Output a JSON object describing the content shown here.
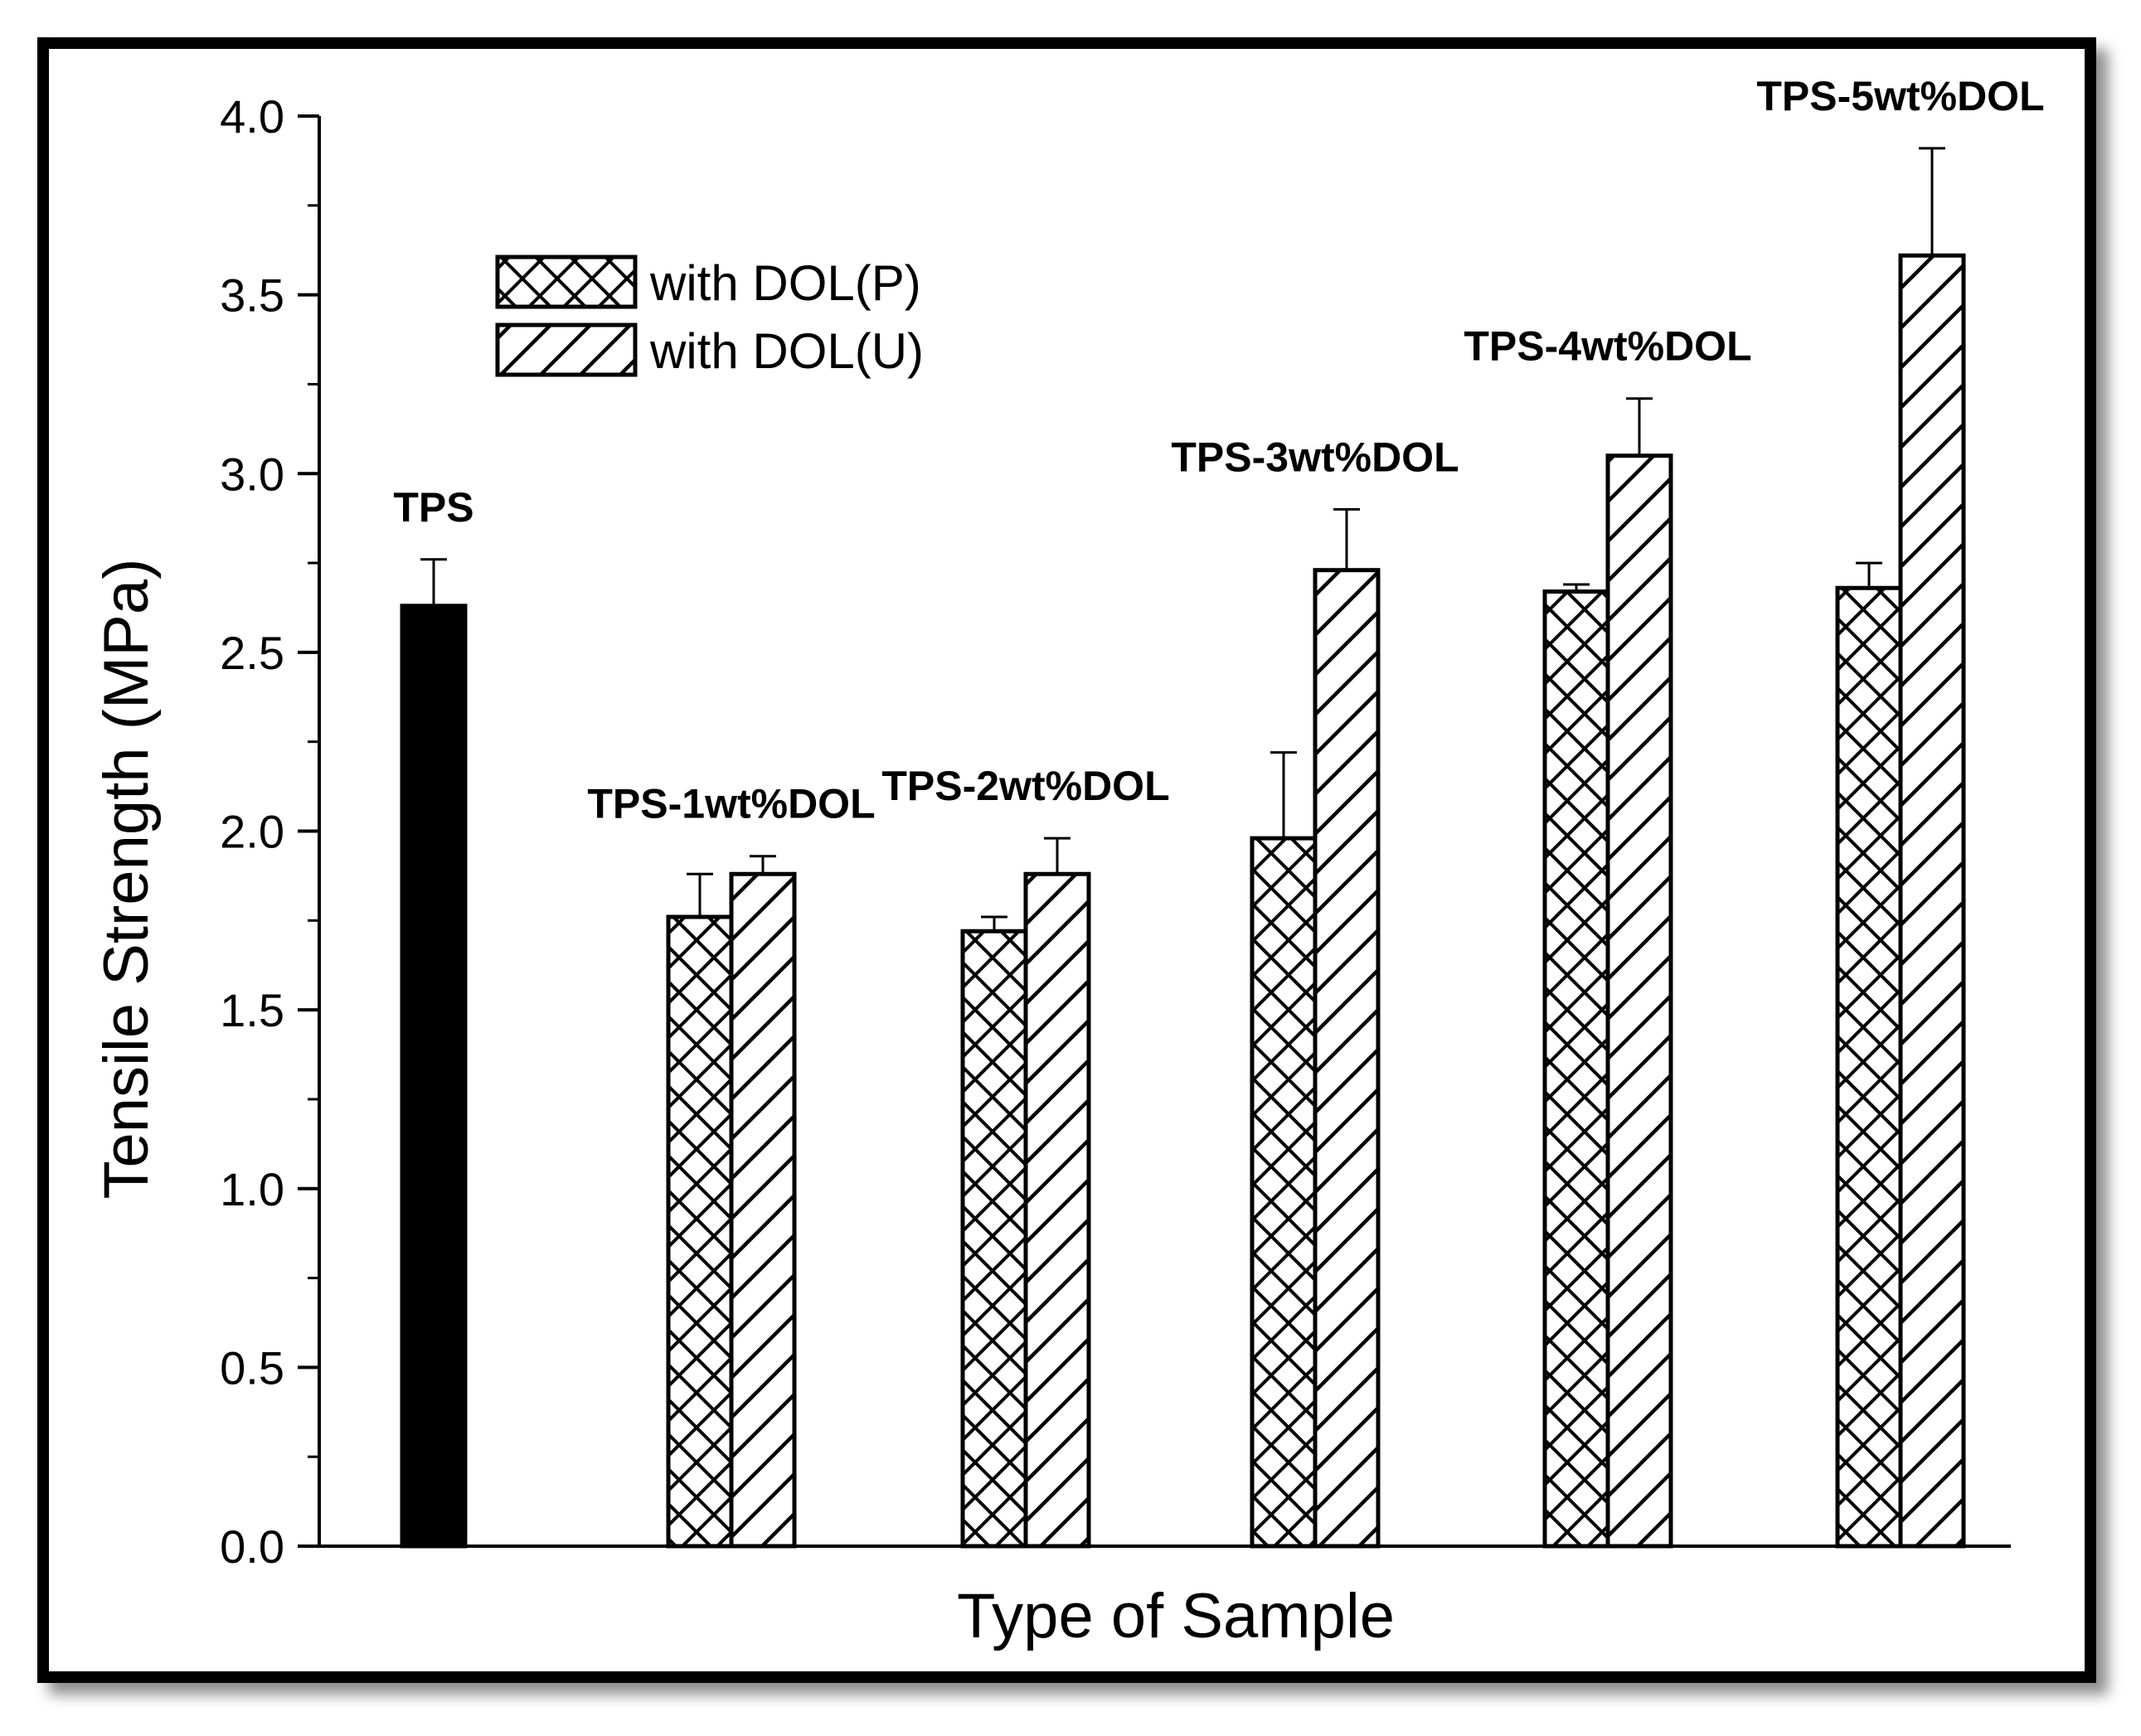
{
  "chart_data": {
    "type": "bar",
    "xlabel": "Type of Sample",
    "ylabel": "Tensile Strength (MPa)",
    "ylim": [
      0,
      4.0
    ],
    "yticks": [
      "0.0",
      "0.5",
      "1.0",
      "1.5",
      "2.0",
      "2.5",
      "3.0",
      "3.5",
      "4.0"
    ],
    "categories": [
      "TPS",
      "TPS-1wt%DOL",
      "TPS-2wt%DOL",
      "TPS-3wt%DOL",
      "TPS-4wt%DOL",
      "TPS-5wt%DOL"
    ],
    "series": [
      {
        "name": "with DOL(P)",
        "pattern": "crosshatch",
        "values": [
          null,
          1.76,
          1.72,
          1.98,
          2.67,
          2.68
        ],
        "errors": [
          null,
          0.12,
          0.04,
          0.24,
          0.02,
          0.07
        ]
      },
      {
        "name": "with DOL(U)",
        "pattern": "diagonal",
        "values": [
          null,
          1.88,
          1.88,
          2.73,
          3.05,
          3.61
        ],
        "errors": [
          null,
          0.05,
          0.1,
          0.17,
          0.16,
          0.3
        ]
      }
    ],
    "control": {
      "category": "TPS",
      "value": 2.63,
      "error": 0.13,
      "color": "#000000"
    },
    "legend": {
      "position": "top-left"
    },
    "grid": false
  }
}
